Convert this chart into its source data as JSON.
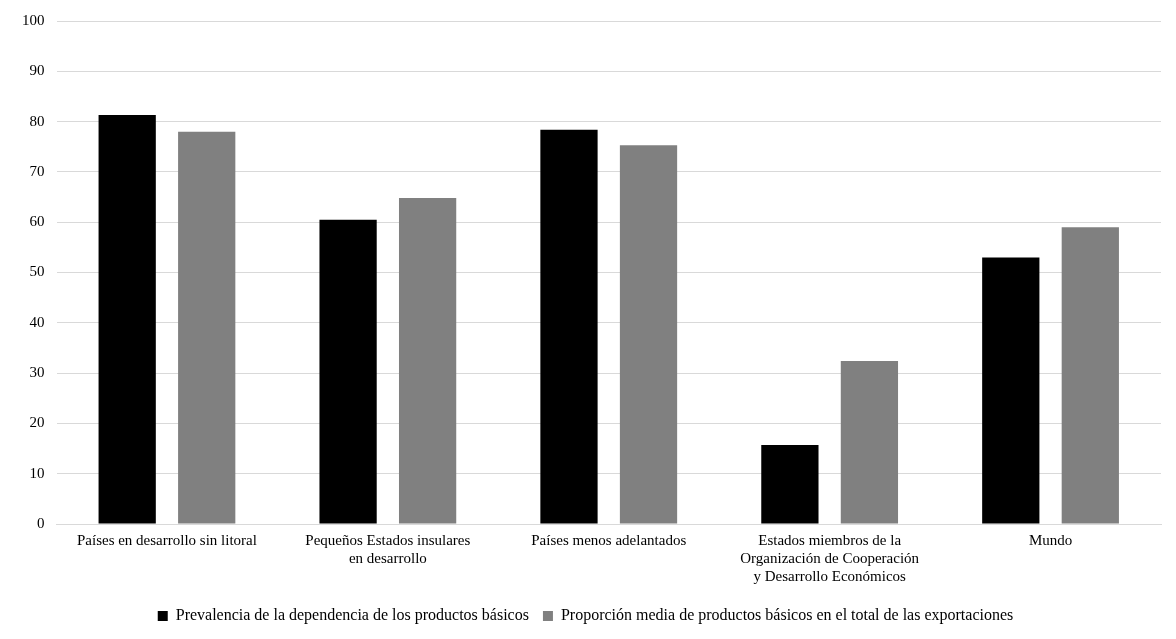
{
  "chart_data": {
    "type": "bar",
    "categories": [
      "Países en desarrollo sin litoral",
      "Pequeños Estados insulares en desarrollo",
      "Países menos adelantados",
      "Estados miembros de la Organización de Cooperación y Desarrollo Económicos",
      "Mundo"
    ],
    "series": [
      {
        "name": "Prevalencia de la dependencia de los productos básicos",
        "color": "#000000",
        "values": [
          81.3,
          60.5,
          78.4,
          15.7,
          53.0
        ]
      },
      {
        "name": "Proporción media de productos básicos en el total de las exportaciones",
        "color": "#808080",
        "values": [
          78.0,
          64.8,
          75.3,
          32.4,
          59.0
        ]
      }
    ],
    "ylim": [
      0,
      100
    ],
    "yticks": [
      0,
      10,
      20,
      30,
      40,
      50,
      60,
      70,
      80,
      90,
      100
    ],
    "grid": "y",
    "legend": "bottom"
  }
}
